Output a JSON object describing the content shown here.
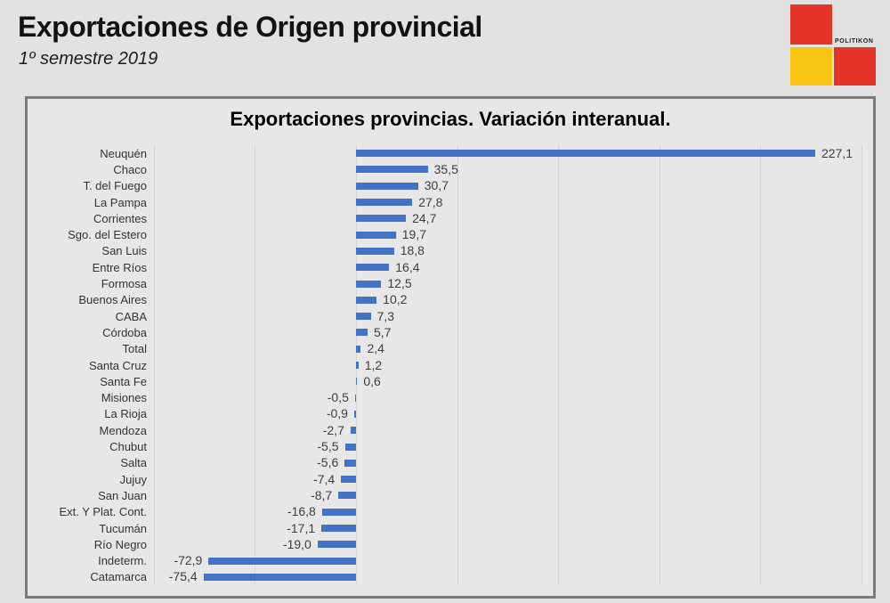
{
  "header": {
    "title": "Exportaciones de Origen provincial",
    "subtitle": "1º semestre 2019",
    "logo_text": "POLITIKON",
    "logo_colors": {
      "red": "#e6332a",
      "yellow": "#f9c513"
    }
  },
  "chart_data": {
    "type": "bar",
    "orientation": "horizontal",
    "title": "Exportaciones provincias. Variación interanual.",
    "categories": [
      "Neuquén",
      "Chaco",
      "T. del Fuego",
      "La Pampa",
      "Corrientes",
      "Sgo. del Estero",
      "San Luis",
      "Entre Ríos",
      "Formosa",
      "Buenos Aires",
      "CABA",
      "Córdoba",
      "Total",
      "Santa Cruz",
      "Santa Fe",
      "Misiones",
      "La Rioja",
      "Mendoza",
      "Chubut",
      "Salta",
      "Jujuy",
      "San Juan",
      "Ext. Y Plat. Cont.",
      "Tucumán",
      "Río Negro",
      "Indeterm.",
      "Catamarca"
    ],
    "values": [
      227.1,
      35.5,
      30.7,
      27.8,
      24.7,
      19.7,
      18.8,
      16.4,
      12.5,
      10.2,
      7.3,
      5.7,
      2.4,
      1.2,
      0.6,
      -0.5,
      -0.9,
      -2.7,
      -5.5,
      -5.6,
      -7.4,
      -8.7,
      -16.8,
      -17.1,
      -19.0,
      -72.9,
      -75.4
    ],
    "value_labels": [
      "227,1",
      "35,5",
      "30,7",
      "27,8",
      "24,7",
      "19,7",
      "18,8",
      "16,4",
      "12,5",
      "10,2",
      "7,3",
      "5,7",
      "2,4",
      "1,2",
      "0,6",
      "-0,5",
      "-0,9",
      "-2,7",
      "-5,5",
      "-5,6",
      "-7,4",
      "-8,7",
      "-16,8",
      "-17,1",
      "-19,0",
      "-72,9",
      "-75,4"
    ],
    "bar_color": "#4472c4",
    "xlim": [
      -100,
      250
    ],
    "gridline_step": 50,
    "grid": true,
    "legend": "none",
    "xlabel": "",
    "ylabel": ""
  }
}
